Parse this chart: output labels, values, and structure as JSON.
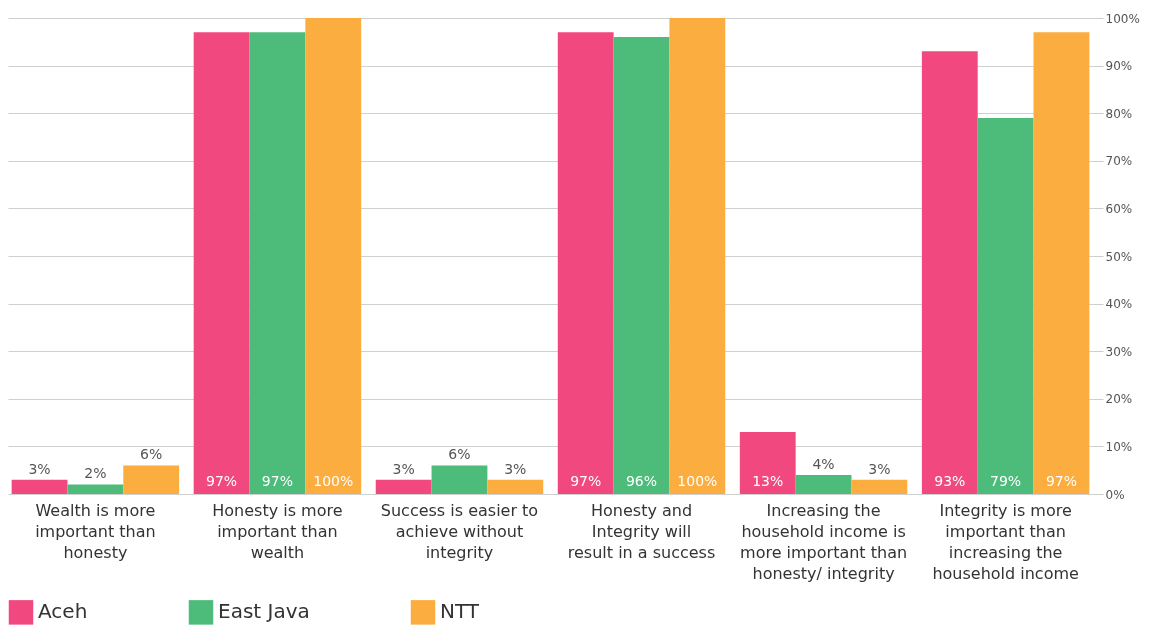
{
  "chart_data": {
    "type": "bar",
    "categories": [
      "Wealth is more important than honesty",
      "Honesty is more important than wealth",
      "Success is easier to achieve without integrity",
      "Honesty and Integrity will result in a success",
      "Increasing the household income is more important than honesty/ integrity",
      "Integrity is more important than increasing the household income"
    ],
    "series": [
      {
        "name": "Aceh",
        "color": "#f0487f",
        "values": [
          3,
          97,
          3,
          97,
          13,
          93
        ],
        "value_labels": [
          "3%",
          "97%",
          "3%",
          "97%",
          "13%",
          "93%"
        ]
      },
      {
        "name": "East Java",
        "color": "#4dbb7a",
        "values": [
          2,
          97,
          6,
          96,
          4,
          79
        ],
        "value_labels": [
          "2%",
          "97%",
          "6%",
          "96%",
          "4%",
          "79%"
        ]
      },
      {
        "name": "NTT",
        "color": "#fbad3f",
        "values": [
          6,
          100,
          3,
          100,
          3,
          97
        ],
        "value_labels": [
          "6%",
          "100%",
          "3%",
          "100%",
          "3%",
          "97%"
        ]
      }
    ],
    "ylim": [
      0,
      100
    ],
    "yticks": [
      {
        "value": 0,
        "label": "0%"
      },
      {
        "value": 10,
        "label": "10%"
      },
      {
        "value": 20,
        "label": "20%"
      },
      {
        "value": 30,
        "label": "30%"
      },
      {
        "value": 40,
        "label": "40%"
      },
      {
        "value": 50,
        "label": "50%"
      },
      {
        "value": 60,
        "label": "60%"
      },
      {
        "value": 70,
        "label": "70%"
      },
      {
        "value": 80,
        "label": "80%"
      },
      {
        "value": 90,
        "label": "90%"
      },
      {
        "value": 100,
        "label": "100%"
      }
    ],
    "grid": "y",
    "legend": "bottom"
  }
}
